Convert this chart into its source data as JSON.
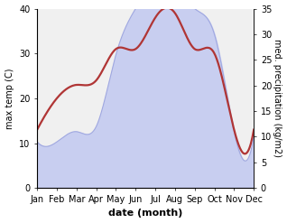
{
  "months": [
    "Jan",
    "Feb",
    "Mar",
    "Apr",
    "May",
    "Jun",
    "Jul",
    "Aug",
    "Sep",
    "Oct",
    "Nov",
    "Dec"
  ],
  "temperature": [
    13,
    20,
    23,
    24,
    31,
    31,
    38,
    39,
    31,
    30,
    13,
    13
  ],
  "precipitation": [
    9,
    9,
    11,
    12,
    26,
    35,
    40,
    40,
    35,
    30,
    11,
    10
  ],
  "temp_ylim": [
    0,
    40
  ],
  "precip_ylim": [
    0,
    35
  ],
  "temp_color": "#b03535",
  "precip_fill_color": "#c8cef0",
  "precip_edge_color": "#a0a8e0",
  "ylabel_left": "max temp (C)",
  "ylabel_right": "med. precipitation (kg/m2)",
  "xlabel": "date (month)",
  "label_fontsize": 7,
  "tick_fontsize": 7,
  "bg_color": "#f0f0f0"
}
